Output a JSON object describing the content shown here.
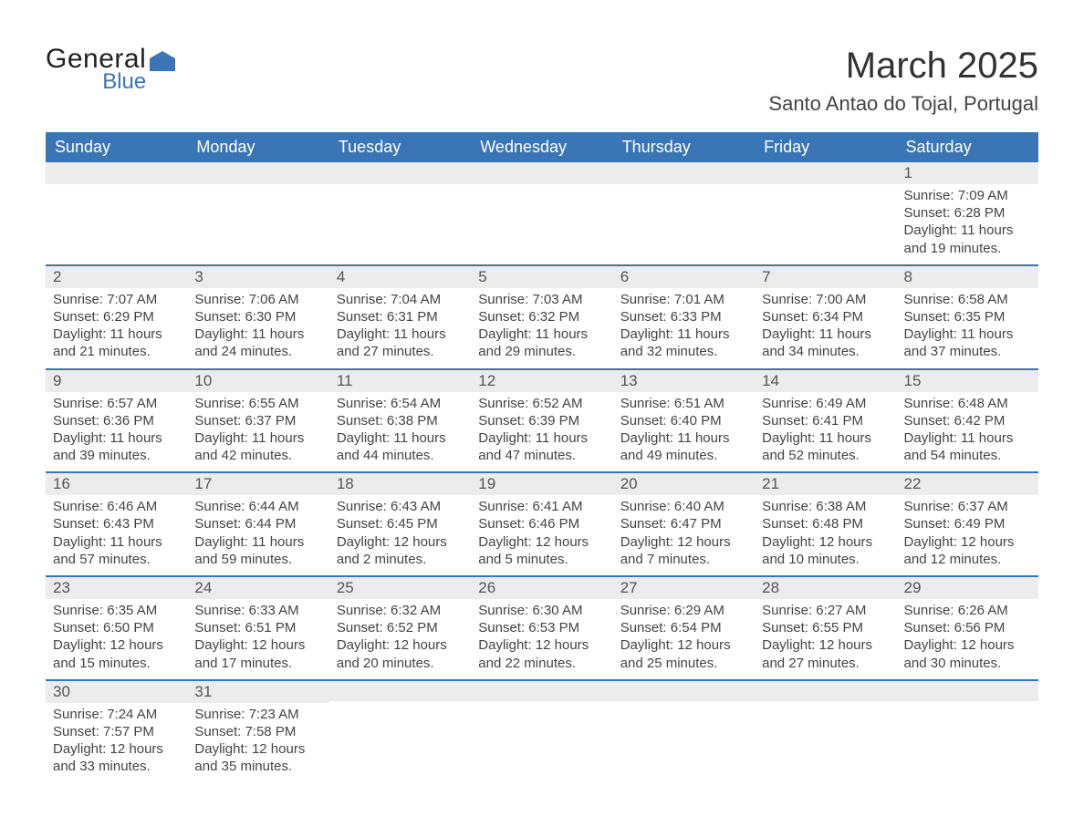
{
  "brand": {
    "line1": "General",
    "line2": "Blue",
    "shape_color": "#3a76b5",
    "text_color": "#222222"
  },
  "title": "March 2025",
  "location": "Santo Antao do Tojal, Portugal",
  "colors": {
    "header_bg": "#3a76b5",
    "header_text": "#ffffff",
    "band_bg": "#ececec",
    "band_border": "#3a76b5",
    "body_text": "#444444",
    "page_bg": "#ffffff"
  },
  "typography": {
    "title_fontsize": 40,
    "location_fontsize": 22,
    "th_fontsize": 18,
    "cell_fontsize": 15
  },
  "layout": {
    "columns": 7,
    "weeks": 6
  },
  "weekdays": [
    "Sunday",
    "Monday",
    "Tuesday",
    "Wednesday",
    "Thursday",
    "Friday",
    "Saturday"
  ],
  "weeks": [
    [
      {
        "blank": true
      },
      {
        "blank": true
      },
      {
        "blank": true
      },
      {
        "blank": true
      },
      {
        "blank": true
      },
      {
        "blank": true
      },
      {
        "day": "1",
        "sunrise": "Sunrise: 7:09 AM",
        "sunset": "Sunset: 6:28 PM",
        "daylight1": "Daylight: 11 hours",
        "daylight2": "and 19 minutes."
      }
    ],
    [
      {
        "day": "2",
        "sunrise": "Sunrise: 7:07 AM",
        "sunset": "Sunset: 6:29 PM",
        "daylight1": "Daylight: 11 hours",
        "daylight2": "and 21 minutes."
      },
      {
        "day": "3",
        "sunrise": "Sunrise: 7:06 AM",
        "sunset": "Sunset: 6:30 PM",
        "daylight1": "Daylight: 11 hours",
        "daylight2": "and 24 minutes."
      },
      {
        "day": "4",
        "sunrise": "Sunrise: 7:04 AM",
        "sunset": "Sunset: 6:31 PM",
        "daylight1": "Daylight: 11 hours",
        "daylight2": "and 27 minutes."
      },
      {
        "day": "5",
        "sunrise": "Sunrise: 7:03 AM",
        "sunset": "Sunset: 6:32 PM",
        "daylight1": "Daylight: 11 hours",
        "daylight2": "and 29 minutes."
      },
      {
        "day": "6",
        "sunrise": "Sunrise: 7:01 AM",
        "sunset": "Sunset: 6:33 PM",
        "daylight1": "Daylight: 11 hours",
        "daylight2": "and 32 minutes."
      },
      {
        "day": "7",
        "sunrise": "Sunrise: 7:00 AM",
        "sunset": "Sunset: 6:34 PM",
        "daylight1": "Daylight: 11 hours",
        "daylight2": "and 34 minutes."
      },
      {
        "day": "8",
        "sunrise": "Sunrise: 6:58 AM",
        "sunset": "Sunset: 6:35 PM",
        "daylight1": "Daylight: 11 hours",
        "daylight2": "and 37 minutes."
      }
    ],
    [
      {
        "day": "9",
        "sunrise": "Sunrise: 6:57 AM",
        "sunset": "Sunset: 6:36 PM",
        "daylight1": "Daylight: 11 hours",
        "daylight2": "and 39 minutes."
      },
      {
        "day": "10",
        "sunrise": "Sunrise: 6:55 AM",
        "sunset": "Sunset: 6:37 PM",
        "daylight1": "Daylight: 11 hours",
        "daylight2": "and 42 minutes."
      },
      {
        "day": "11",
        "sunrise": "Sunrise: 6:54 AM",
        "sunset": "Sunset: 6:38 PM",
        "daylight1": "Daylight: 11 hours",
        "daylight2": "and 44 minutes."
      },
      {
        "day": "12",
        "sunrise": "Sunrise: 6:52 AM",
        "sunset": "Sunset: 6:39 PM",
        "daylight1": "Daylight: 11 hours",
        "daylight2": "and 47 minutes."
      },
      {
        "day": "13",
        "sunrise": "Sunrise: 6:51 AM",
        "sunset": "Sunset: 6:40 PM",
        "daylight1": "Daylight: 11 hours",
        "daylight2": "and 49 minutes."
      },
      {
        "day": "14",
        "sunrise": "Sunrise: 6:49 AM",
        "sunset": "Sunset: 6:41 PM",
        "daylight1": "Daylight: 11 hours",
        "daylight2": "and 52 minutes."
      },
      {
        "day": "15",
        "sunrise": "Sunrise: 6:48 AM",
        "sunset": "Sunset: 6:42 PM",
        "daylight1": "Daylight: 11 hours",
        "daylight2": "and 54 minutes."
      }
    ],
    [
      {
        "day": "16",
        "sunrise": "Sunrise: 6:46 AM",
        "sunset": "Sunset: 6:43 PM",
        "daylight1": "Daylight: 11 hours",
        "daylight2": "and 57 minutes."
      },
      {
        "day": "17",
        "sunrise": "Sunrise: 6:44 AM",
        "sunset": "Sunset: 6:44 PM",
        "daylight1": "Daylight: 11 hours",
        "daylight2": "and 59 minutes."
      },
      {
        "day": "18",
        "sunrise": "Sunrise: 6:43 AM",
        "sunset": "Sunset: 6:45 PM",
        "daylight1": "Daylight: 12 hours",
        "daylight2": "and 2 minutes."
      },
      {
        "day": "19",
        "sunrise": "Sunrise: 6:41 AM",
        "sunset": "Sunset: 6:46 PM",
        "daylight1": "Daylight: 12 hours",
        "daylight2": "and 5 minutes."
      },
      {
        "day": "20",
        "sunrise": "Sunrise: 6:40 AM",
        "sunset": "Sunset: 6:47 PM",
        "daylight1": "Daylight: 12 hours",
        "daylight2": "and 7 minutes."
      },
      {
        "day": "21",
        "sunrise": "Sunrise: 6:38 AM",
        "sunset": "Sunset: 6:48 PM",
        "daylight1": "Daylight: 12 hours",
        "daylight2": "and 10 minutes."
      },
      {
        "day": "22",
        "sunrise": "Sunrise: 6:37 AM",
        "sunset": "Sunset: 6:49 PM",
        "daylight1": "Daylight: 12 hours",
        "daylight2": "and 12 minutes."
      }
    ],
    [
      {
        "day": "23",
        "sunrise": "Sunrise: 6:35 AM",
        "sunset": "Sunset: 6:50 PM",
        "daylight1": "Daylight: 12 hours",
        "daylight2": "and 15 minutes."
      },
      {
        "day": "24",
        "sunrise": "Sunrise: 6:33 AM",
        "sunset": "Sunset: 6:51 PM",
        "daylight1": "Daylight: 12 hours",
        "daylight2": "and 17 minutes."
      },
      {
        "day": "25",
        "sunrise": "Sunrise: 6:32 AM",
        "sunset": "Sunset: 6:52 PM",
        "daylight1": "Daylight: 12 hours",
        "daylight2": "and 20 minutes."
      },
      {
        "day": "26",
        "sunrise": "Sunrise: 6:30 AM",
        "sunset": "Sunset: 6:53 PM",
        "daylight1": "Daylight: 12 hours",
        "daylight2": "and 22 minutes."
      },
      {
        "day": "27",
        "sunrise": "Sunrise: 6:29 AM",
        "sunset": "Sunset: 6:54 PM",
        "daylight1": "Daylight: 12 hours",
        "daylight2": "and 25 minutes."
      },
      {
        "day": "28",
        "sunrise": "Sunrise: 6:27 AM",
        "sunset": "Sunset: 6:55 PM",
        "daylight1": "Daylight: 12 hours",
        "daylight2": "and 27 minutes."
      },
      {
        "day": "29",
        "sunrise": "Sunrise: 6:26 AM",
        "sunset": "Sunset: 6:56 PM",
        "daylight1": "Daylight: 12 hours",
        "daylight2": "and 30 minutes."
      }
    ],
    [
      {
        "day": "30",
        "sunrise": "Sunrise: 7:24 AM",
        "sunset": "Sunset: 7:57 PM",
        "daylight1": "Daylight: 12 hours",
        "daylight2": "and 33 minutes."
      },
      {
        "day": "31",
        "sunrise": "Sunrise: 7:23 AM",
        "sunset": "Sunset: 7:58 PM",
        "daylight1": "Daylight: 12 hours",
        "daylight2": "and 35 minutes."
      },
      {
        "blank": true
      },
      {
        "blank": true
      },
      {
        "blank": true
      },
      {
        "blank": true
      },
      {
        "blank": true
      }
    ]
  ]
}
